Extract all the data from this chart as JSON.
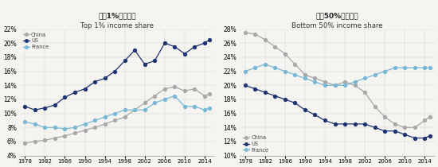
{
  "left_title_en": "Top 1% income share",
  "left_title_zh": "顶层1%收入占比",
  "right_title_en": "Bottom 50% income share",
  "right_title_zh": "底层50%收入占比",
  "years": [
    1978,
    1980,
    1982,
    1984,
    1986,
    1988,
    1990,
    1992,
    1994,
    1996,
    1998,
    2000,
    2002,
    2004,
    2006,
    2008,
    2010,
    2012,
    2014,
    2015
  ],
  "top1_china": [
    5.8,
    6.0,
    6.2,
    6.5,
    6.8,
    7.2,
    7.6,
    8.0,
    8.5,
    9.0,
    9.5,
    10.5,
    11.5,
    12.5,
    13.5,
    13.8,
    13.2,
    13.5,
    12.5,
    12.8
  ],
  "top1_us": [
    11.0,
    10.5,
    10.8,
    11.2,
    12.3,
    13.0,
    13.5,
    14.5,
    15.0,
    16.0,
    17.5,
    19.0,
    17.0,
    17.5,
    20.0,
    19.5,
    18.5,
    19.5,
    20.0,
    20.5
  ],
  "top1_france": [
    8.8,
    8.5,
    8.0,
    8.0,
    7.8,
    8.0,
    8.5,
    9.0,
    9.5,
    10.0,
    10.5,
    10.5,
    10.5,
    11.5,
    12.0,
    12.5,
    11.0,
    11.0,
    10.5,
    10.8
  ],
  "bot50_china": [
    27.5,
    27.3,
    26.5,
    25.5,
    24.5,
    23.0,
    21.5,
    21.0,
    20.5,
    20.0,
    20.5,
    20.0,
    19.0,
    17.0,
    15.5,
    14.5,
    14.0,
    14.0,
    15.0,
    15.5
  ],
  "bot50_us": [
    20.0,
    19.5,
    19.0,
    18.5,
    18.0,
    17.5,
    16.5,
    15.8,
    15.0,
    14.5,
    14.5,
    14.5,
    14.5,
    14.0,
    13.5,
    13.5,
    13.0,
    12.5,
    12.5,
    12.8
  ],
  "bot50_france": [
    22.0,
    22.5,
    23.0,
    22.5,
    22.0,
    21.5,
    21.0,
    20.5,
    20.0,
    20.0,
    20.0,
    20.5,
    21.0,
    21.5,
    22.0,
    22.5,
    22.5,
    22.5,
    22.5,
    22.5
  ],
  "color_china": "#a8a8a8",
  "color_us": "#1f3472",
  "color_france": "#7ab8d8",
  "left_ylim": [
    0.04,
    0.22
  ],
  "left_yticks": [
    0.04,
    0.06,
    0.08,
    0.1,
    0.12,
    0.14,
    0.16,
    0.18,
    0.2,
    0.22
  ],
  "right_ylim": [
    0.1,
    0.28
  ],
  "right_yticks": [
    0.1,
    0.12,
    0.14,
    0.16,
    0.18,
    0.2,
    0.22,
    0.24,
    0.26,
    0.28
  ],
  "xlim": [
    1977,
    2016
  ],
  "xticks": [
    1978,
    1982,
    1986,
    1990,
    1994,
    1998,
    2002,
    2006,
    2010,
    2014
  ],
  "bg_color": "#f5f4f0"
}
